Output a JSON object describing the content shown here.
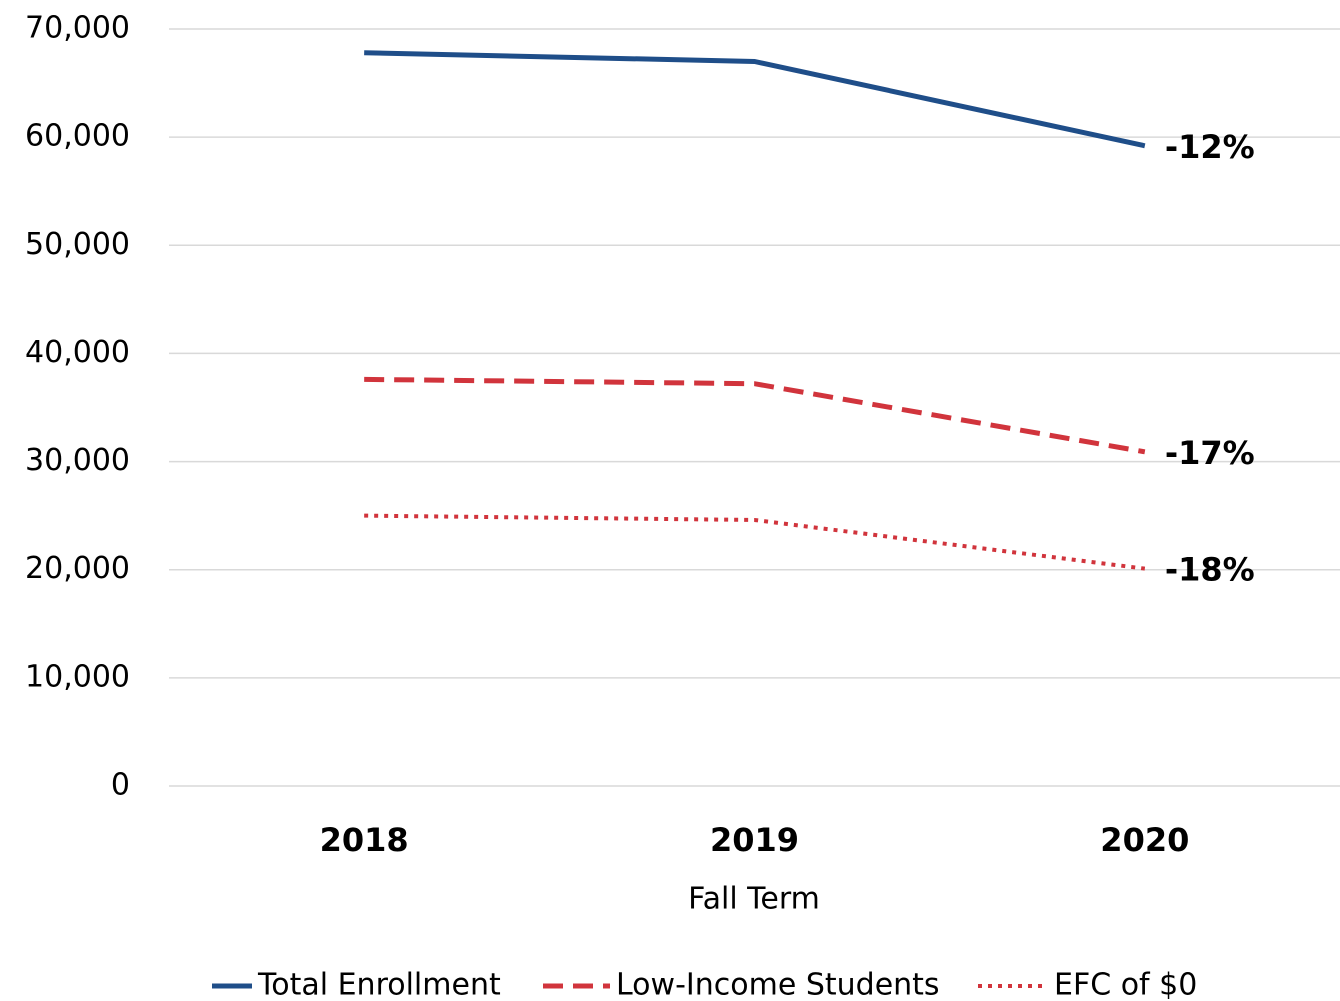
{
  "chart_data": {
    "type": "line",
    "x_label": "Fall Term",
    "categories": [
      "2018",
      "2019",
      "2020"
    ],
    "series": [
      {
        "name": "Total Enrollment",
        "color": "#1f4e89",
        "style": "solid",
        "values": [
          67800,
          67000,
          59200
        ],
        "annotation": "-12%"
      },
      {
        "name": "Low-Income Students",
        "color": "#d1343c",
        "style": "dashed",
        "values": [
          37600,
          37200,
          30900
        ],
        "annotation": "-17%"
      },
      {
        "name": "EFC of $0",
        "color": "#d1343c",
        "style": "dotted",
        "values": [
          25000,
          24600,
          20100
        ],
        "annotation": "-18%"
      }
    ],
    "ylim": [
      0,
      70000
    ],
    "yticks": [
      0,
      {
        "value": 10000,
        "label": "10,000"
      },
      {
        "value": 20000,
        "label": "20,000"
      },
      {
        "value": 30000,
        "label": "30,000"
      },
      {
        "value": 40000,
        "label": "40,000"
      },
      {
        "value": 50000,
        "label": "50,000"
      },
      {
        "value": 60000,
        "label": "60,000"
      },
      {
        "value": 70000,
        "label": "70,000"
      }
    ],
    "grid": true,
    "legend": "bottom"
  }
}
